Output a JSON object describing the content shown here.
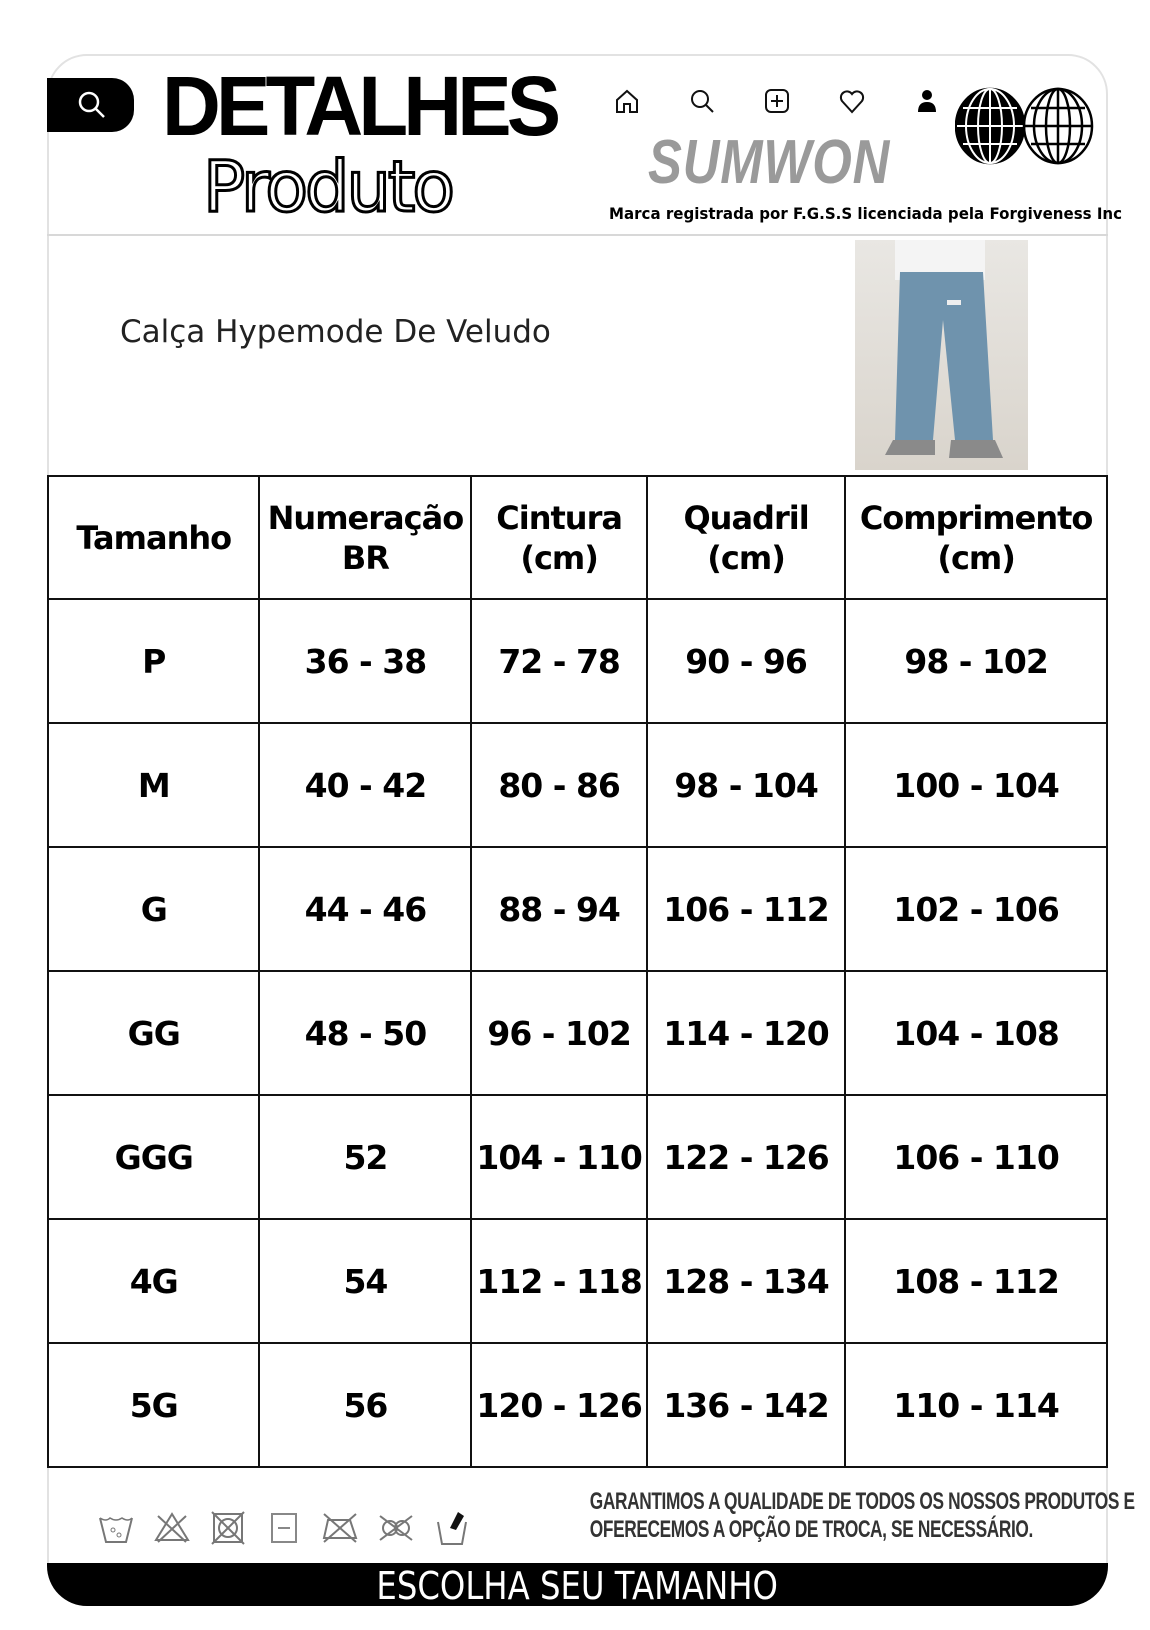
{
  "header": {
    "title_line1": "DETALHES",
    "title_line2": "Produto",
    "brand": "SUMWON",
    "tagline": "Marca registrada por F.G.S.S licenciada pela Forgiveness Inc",
    "nav_icons": [
      "home-icon",
      "search-icon",
      "add-icon",
      "heart-icon",
      "user-icon"
    ]
  },
  "product": {
    "name": "Calça Hypemode De Veludo"
  },
  "size_table": {
    "headers": [
      [
        "Tamanho",
        ""
      ],
      [
        "Numeração",
        "BR"
      ],
      [
        "Cintura",
        "(cm)"
      ],
      [
        "Quadril",
        "(cm)"
      ],
      [
        "Comprimento",
        "(cm)"
      ]
    ],
    "rows": [
      [
        "P",
        "36 - 38",
        "72 - 78",
        "90 - 96",
        "98 - 102"
      ],
      [
        "M",
        "40 - 42",
        "80 - 86",
        "98 - 104",
        "100 - 104"
      ],
      [
        "G",
        "44 - 46",
        "88 - 94",
        "106 - 112",
        "102 - 106"
      ],
      [
        "GG",
        "48 - 50",
        "96 - 102",
        "114 - 120",
        "104 - 108"
      ],
      [
        "GGG",
        "52",
        "104 - 110",
        "122 - 126",
        "106 - 110"
      ],
      [
        "4G",
        "54",
        "112 - 118",
        "128 - 134",
        "108 - 112"
      ],
      [
        "5G",
        "56",
        "120 - 126",
        "136 - 142",
        "110 - 114"
      ]
    ]
  },
  "footer": {
    "guarantee_line1": "GARANTIMOS A QUALIDADE DE TODOS OS NOSSOS PRODUTOS E",
    "guarantee_line2": "OFERECEMOS A OPÇÃO DE TROCA, SE NECESSÁRIO.",
    "cta": "ESCOLHA SEU TAMANHO",
    "care_icons": [
      "wash-30-icon",
      "no-bleach-icon",
      "no-tumble-dry-icon",
      "dry-flat-icon",
      "no-iron-icon",
      "no-dry-clean-icon",
      "hand-wash-icon"
    ]
  }
}
